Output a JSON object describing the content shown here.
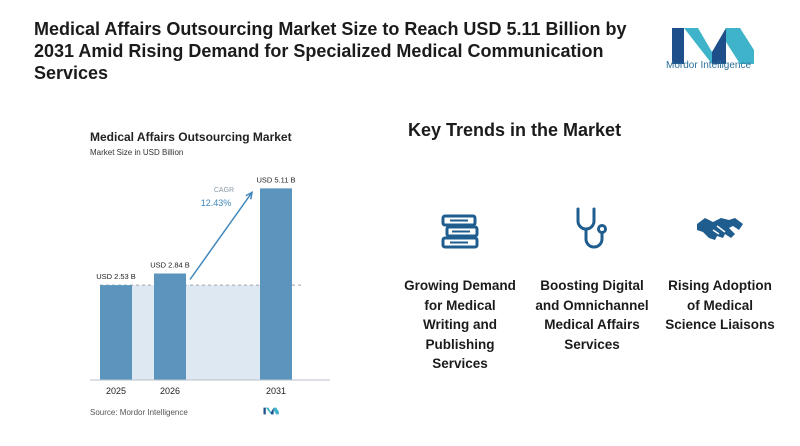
{
  "headline": "Medical Affairs Outsourcing Market Size to Reach USD 5.11 Billion by 2031 Amid Rising Demand for Specialized Medical Communication Services",
  "brand": {
    "name": "Mordor Intelligence",
    "color": "#2a6f9a"
  },
  "chart_data": {
    "type": "bar",
    "title": "Medical Affairs Outsourcing Market",
    "subtitle": "Market Size in USD Billion",
    "categories": [
      "2025",
      "2026",
      "2031"
    ],
    "values": [
      2.53,
      2.84,
      5.11
    ],
    "data_labels": [
      "USD 2.53 B",
      "USD 2.84 B",
      "USD 5.11 B"
    ],
    "cagr_label": "CAGR",
    "cagr_value": "12.43%",
    "bar_color": "#5b95be",
    "shade_color": "#dde8f2",
    "accent_color": "#3f86bb",
    "ylim": [
      0,
      5.6
    ],
    "source": "Source: Mordor Intelligence"
  },
  "trends": {
    "title": "Key Trends in the Market",
    "items": [
      {
        "icon": "books-icon",
        "label": "Growing Demand for Medical Writing and Publishing Services"
      },
      {
        "icon": "stethoscope-icon",
        "label": "Boosting Digital and Omnichannel Medical Affairs Services"
      },
      {
        "icon": "handshake-icon",
        "label": "Rising Adoption of Medical Science Liaisons"
      }
    ]
  }
}
